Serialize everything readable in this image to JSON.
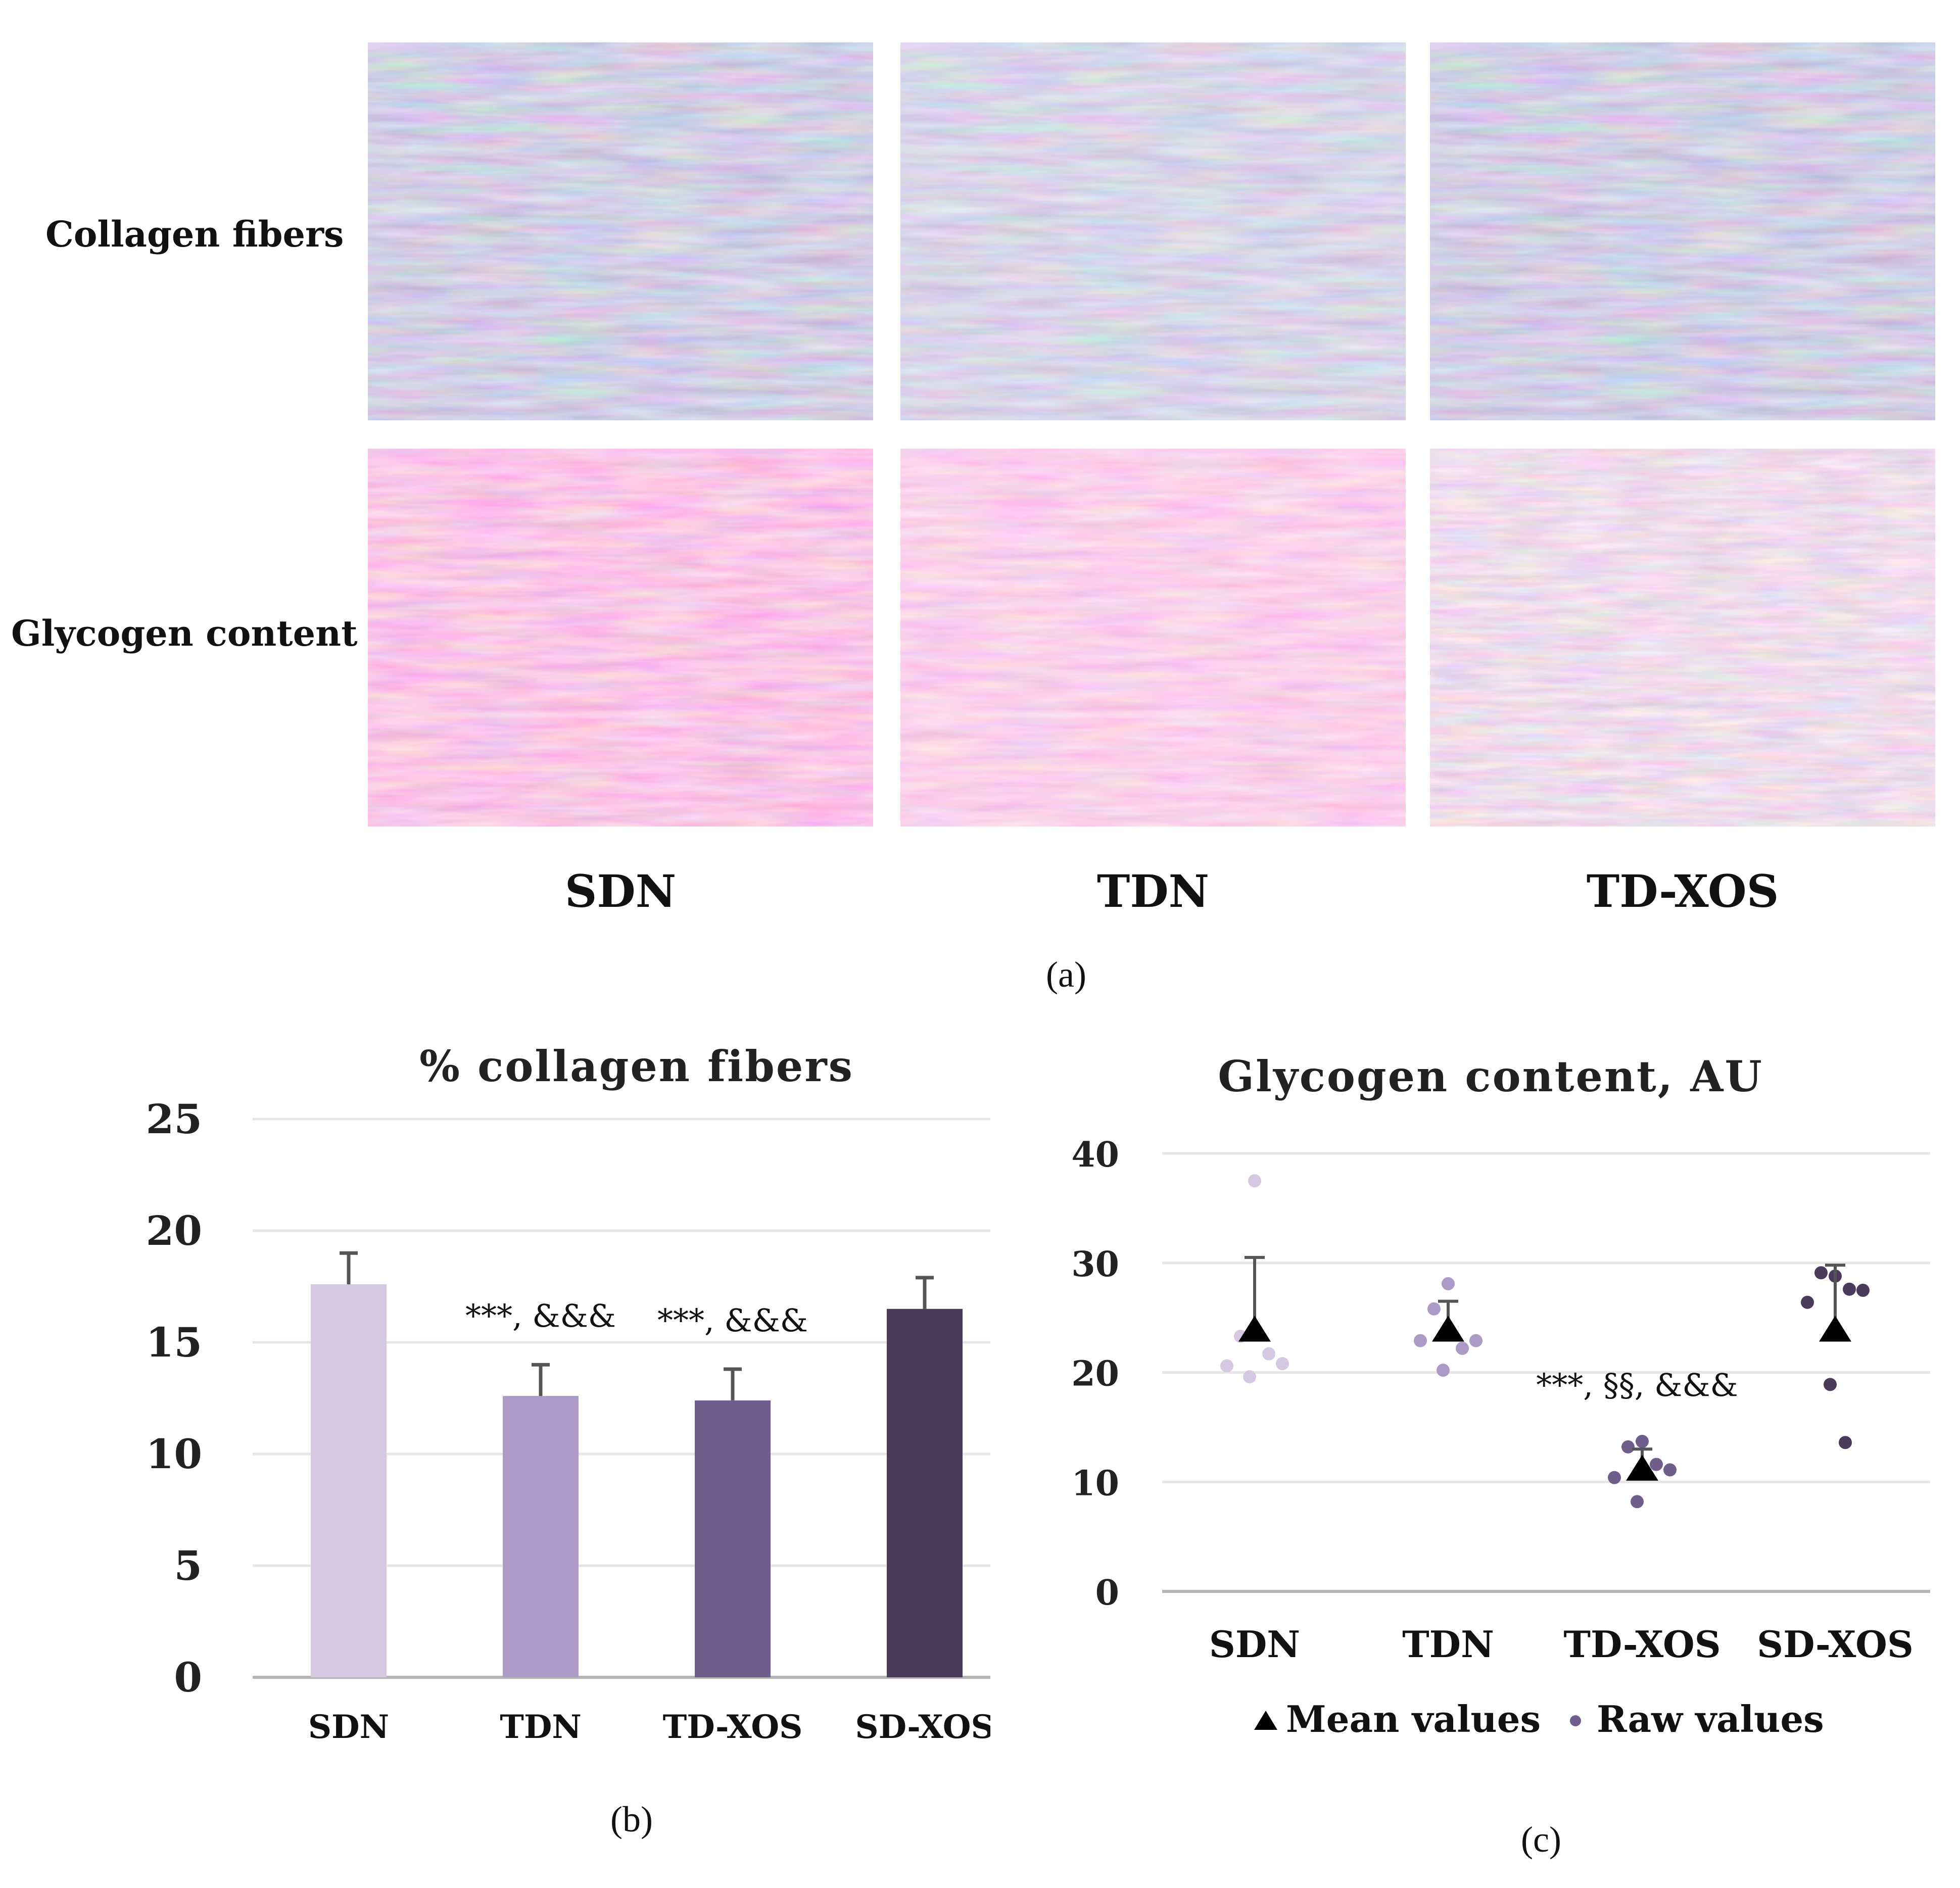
{
  "panel_a": {
    "row_labels": [
      "Collagen fibers",
      "Glycogen content"
    ],
    "column_labels": [
      "SDN",
      "TDN",
      "TD-XOS"
    ],
    "letter": "(a)"
  },
  "panel_b": {
    "letter": "(b)"
  },
  "panel_c": {
    "letter": "(c)"
  },
  "colors": {
    "SDN": "#d4c9e0",
    "TDN": "#ab9bc6",
    "TD-XOS": "#6f5d8c",
    "SD-XOS": "#4b3a5c",
    "error_bar": "#555555",
    "grid": "#e6e6e6",
    "axis": "#b5b5b5",
    "stain_trichrome": "#a796c0",
    "stain_pas": "#e88bc2"
  },
  "chart_data": [
    {
      "type": "bar",
      "title": "% collagen fibers",
      "categories": [
        "SDN",
        "TDN",
        "TD-XOS",
        "SD-XOS"
      ],
      "values": [
        17.6,
        12.6,
        12.4,
        16.5
      ],
      "error": [
        1.4,
        1.4,
        1.4,
        1.4
      ],
      "annotations": [
        "",
        "***, &&&",
        "***, &&&",
        ""
      ],
      "ylim": [
        0,
        25
      ],
      "yticks": [
        0,
        5,
        10,
        15,
        20,
        25
      ],
      "grid": true
    },
    {
      "type": "scatter",
      "title": "Glycogen content, AU",
      "categories": [
        "SDN",
        "TDN",
        "TD-XOS",
        "SD-XOS"
      ],
      "mean_values": [
        23.7,
        23.7,
        11.0,
        23.7
      ],
      "error": [
        6.8,
        2.8,
        2.0,
        6.1
      ],
      "raw_values": [
        [
          37.5,
          23.3,
          21.7,
          20.6,
          20.8,
          19.6
        ],
        [
          28.1,
          25.8,
          22.2,
          22.9,
          22.9,
          20.2
        ],
        [
          13.7,
          13.2,
          11.6,
          10.4,
          11.1,
          8.2
        ],
        [
          28.8,
          29.1,
          27.6,
          26.4,
          27.5,
          18.9,
          13.6
        ]
      ],
      "annotations": [
        "",
        "",
        "***, §§, &&&",
        ""
      ],
      "legend": [
        "Mean values",
        "Raw values"
      ],
      "legend_placement": "bottom",
      "ylim": [
        0,
        40
      ],
      "yticks": [
        0,
        10,
        20,
        30,
        40
      ],
      "grid": true
    }
  ]
}
